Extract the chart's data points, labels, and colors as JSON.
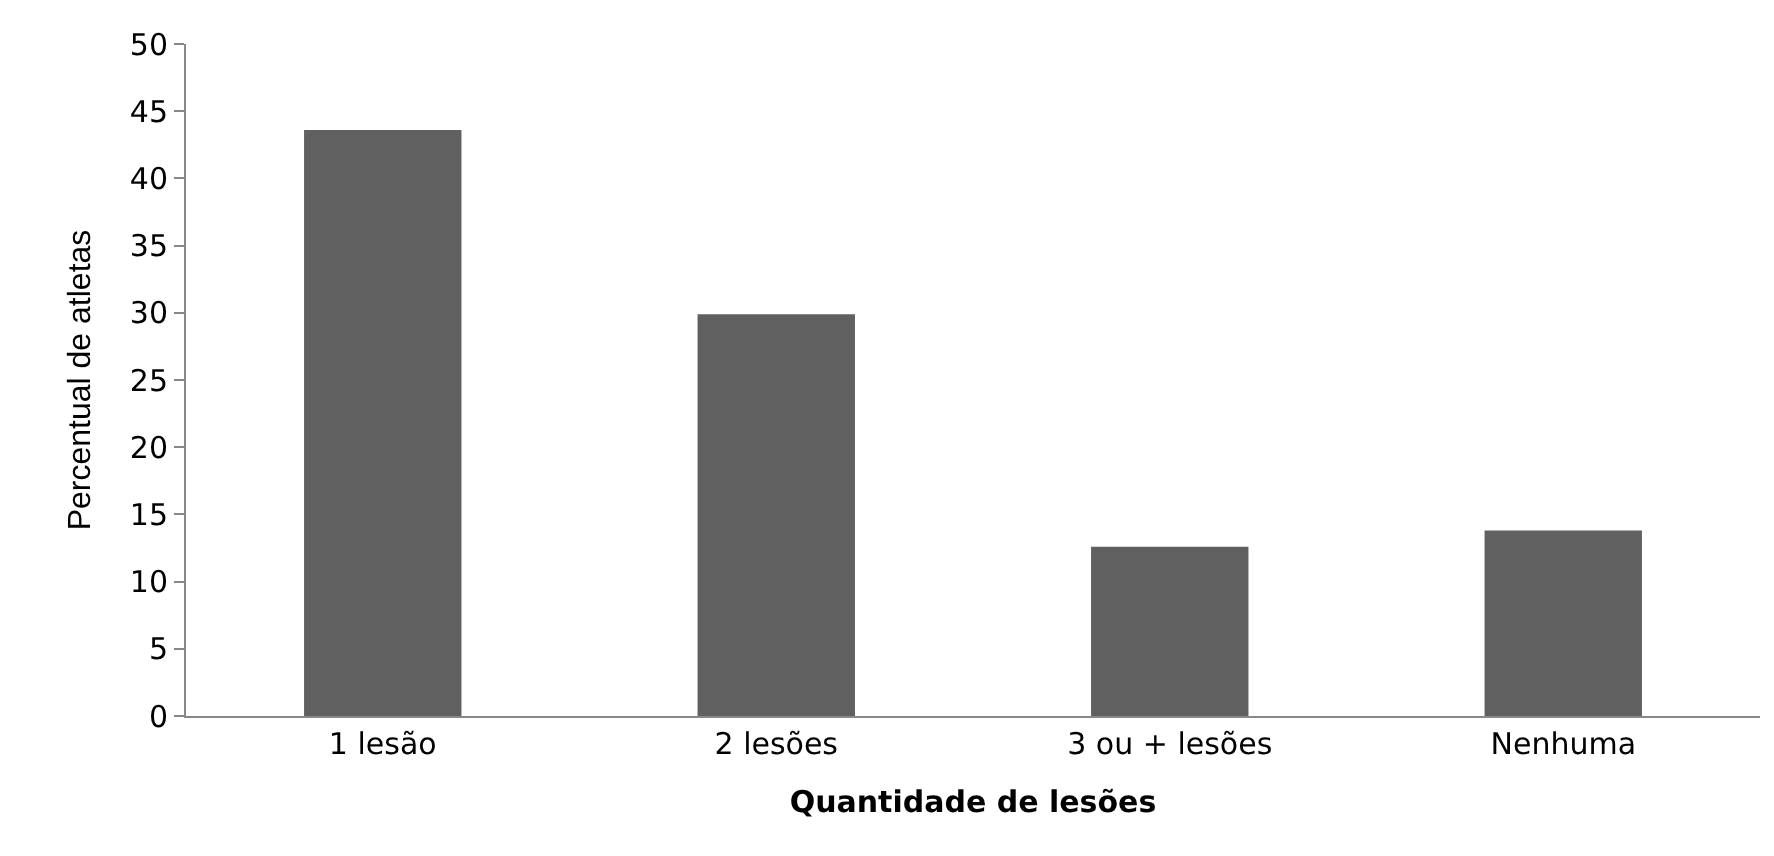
{
  "chart_data": {
    "type": "bar",
    "xlabel": "Quantidade de lesões",
    "ylabel": "Percentual de atletas",
    "categories": [
      "1 lesão",
      "2 lesões",
      "3 ou + lesões",
      "Nenhuma"
    ],
    "values": [
      43.6,
      29.9,
      12.6,
      13.8
    ],
    "color": "#606060",
    "ylim": [
      0,
      50
    ],
    "yticks": [
      0,
      5,
      10,
      15,
      20,
      25,
      30,
      35,
      40,
      45,
      50
    ]
  }
}
